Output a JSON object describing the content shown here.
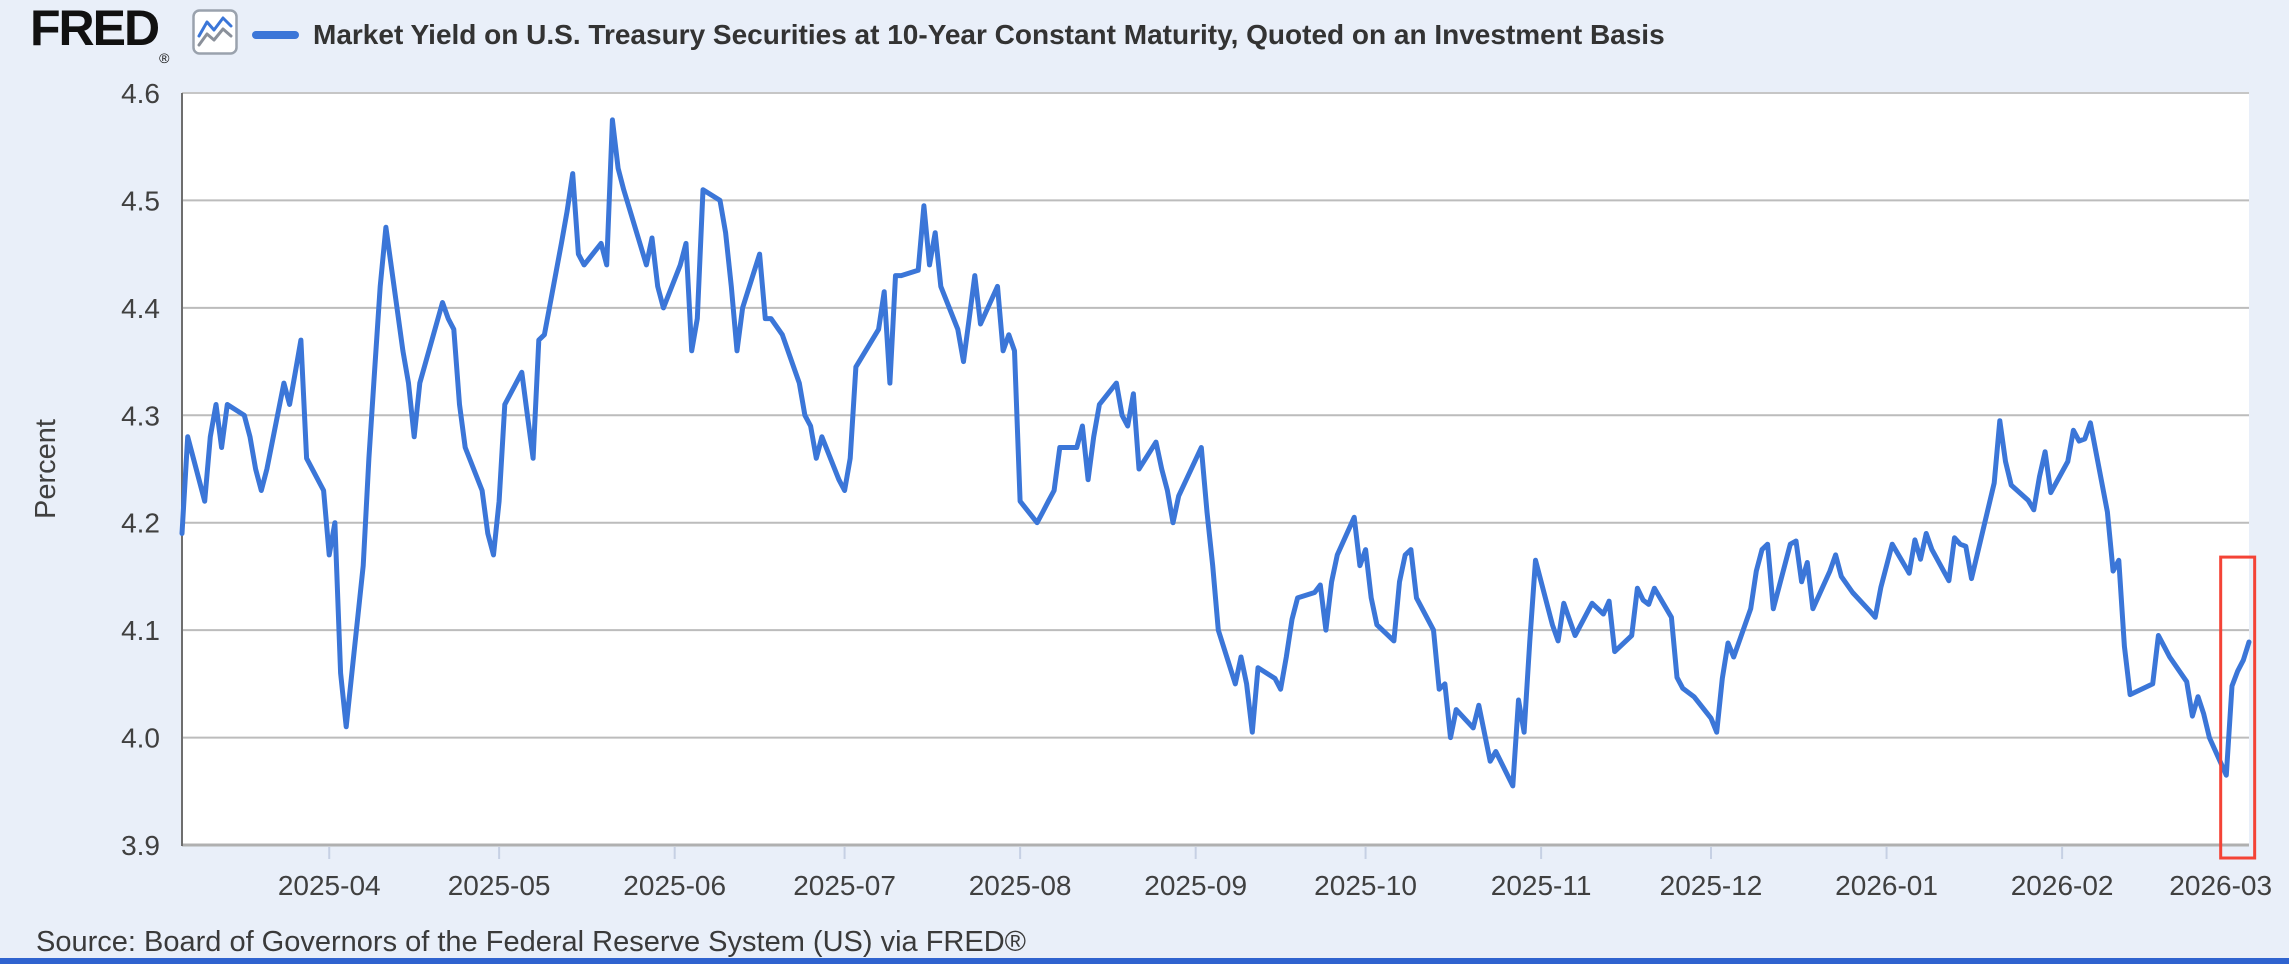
{
  "header": {
    "logo_text": "FRED",
    "logo_registered": "®",
    "title": "Market Yield on U.S. Treasury Securities at 10-Year Constant Maturity, Quoted on an Investment Basis"
  },
  "footer": {
    "source": "Source: Board of Governors of the Federal Reserve System (US) via FRED®"
  },
  "colors": {
    "page_background": "#e9eff9",
    "plot_background": "#ffffff",
    "gridline": "#bcbcbc",
    "axis_line": "#6e6e6e",
    "bottom_axis": "#b0b0b0",
    "tick_mark": "#c6d0e4",
    "label_text": "#404040",
    "series_line": "#3b76d8",
    "highlight_red": "#f44336",
    "footer_bar": "#2f63cf",
    "logo_black": "#111111",
    "icon_gray_line": "#8a909a"
  },
  "chart_data": {
    "type": "line",
    "title": "Market Yield on U.S. Treasury Securities at 10-Year Constant Maturity, Quoted on an Investment Basis",
    "xlabel": "",
    "ylabel": "Percent",
    "ylim": [
      3.9,
      4.6
    ],
    "x_domain": [
      "2025-03-06",
      "2026-03-06"
    ],
    "grid": true,
    "legend_position": "top-left",
    "y_ticks": [
      4.6,
      4.5,
      4.4,
      4.3,
      4.2,
      4.1,
      4.0,
      3.9
    ],
    "x_ticks": [
      "2025-04",
      "2025-05",
      "2025-06",
      "2025-07",
      "2025-08",
      "2025-09",
      "2025-10",
      "2025-11",
      "2025-12",
      "2026-01",
      "2026-02",
      "2026-03"
    ],
    "highlight_box": {
      "from": "2026-03-01",
      "to": "2026-03-07",
      "value_top": 4.168,
      "color": "#f44336"
    },
    "series": [
      {
        "name": "Market Yield on U.S. Treasury Securities at 10-Year Constant Maturity, Quoted on an Investment Basis",
        "color": "#3b76d8",
        "points": [
          [
            "2025-03-06",
            4.19
          ],
          [
            "2025-03-07",
            4.28
          ],
          [
            "2025-03-10",
            4.22
          ],
          [
            "2025-03-11",
            4.28
          ],
          [
            "2025-03-12",
            4.31
          ],
          [
            "2025-03-13",
            4.27
          ],
          [
            "2025-03-14",
            4.31
          ],
          [
            "2025-03-17",
            4.3
          ],
          [
            "2025-03-18",
            4.28
          ],
          [
            "2025-03-19",
            4.25
          ],
          [
            "2025-03-20",
            4.23
          ],
          [
            "2025-03-21",
            4.25
          ],
          [
            "2025-03-24",
            4.33
          ],
          [
            "2025-03-25",
            4.31
          ],
          [
            "2025-03-26",
            4.34
          ],
          [
            "2025-03-27",
            4.37
          ],
          [
            "2025-03-28",
            4.26
          ],
          [
            "2025-03-31",
            4.23
          ],
          [
            "2025-04-01",
            4.17
          ],
          [
            "2025-04-02",
            4.2
          ],
          [
            "2025-04-03",
            4.06
          ],
          [
            "2025-04-04",
            4.01
          ],
          [
            "2025-04-07",
            4.16
          ],
          [
            "2025-04-08",
            4.26
          ],
          [
            "2025-04-09",
            4.34
          ],
          [
            "2025-04-10",
            4.42
          ],
          [
            "2025-04-11",
            4.475
          ],
          [
            "2025-04-14",
            4.36
          ],
          [
            "2025-04-15",
            4.33
          ],
          [
            "2025-04-16",
            4.28
          ],
          [
            "2025-04-17",
            4.33
          ],
          [
            "2025-04-21",
            4.405
          ],
          [
            "2025-04-22",
            4.39
          ],
          [
            "2025-04-23",
            4.38
          ],
          [
            "2025-04-24",
            4.31
          ],
          [
            "2025-04-25",
            4.27
          ],
          [
            "2025-04-28",
            4.23
          ],
          [
            "2025-04-29",
            4.19
          ],
          [
            "2025-04-30",
            4.17
          ],
          [
            "2025-05-01",
            4.22
          ],
          [
            "2025-05-02",
            4.31
          ],
          [
            "2025-05-05",
            4.34
          ],
          [
            "2025-05-06",
            4.3
          ],
          [
            "2025-05-07",
            4.26
          ],
          [
            "2025-05-08",
            4.37
          ],
          [
            "2025-05-09",
            4.375
          ],
          [
            "2025-05-12",
            4.46
          ],
          [
            "2025-05-13",
            4.49
          ],
          [
            "2025-05-14",
            4.525
          ],
          [
            "2025-05-15",
            4.45
          ],
          [
            "2025-05-16",
            4.44
          ],
          [
            "2025-05-19",
            4.46
          ],
          [
            "2025-05-20",
            4.44
          ],
          [
            "2025-05-21",
            4.575
          ],
          [
            "2025-05-22",
            4.53
          ],
          [
            "2025-05-23",
            4.51
          ],
          [
            "2025-05-27",
            4.44
          ],
          [
            "2025-05-28",
            4.465
          ],
          [
            "2025-05-29",
            4.42
          ],
          [
            "2025-05-30",
            4.4
          ],
          [
            "2025-06-02",
            4.44
          ],
          [
            "2025-06-03",
            4.46
          ],
          [
            "2025-06-04",
            4.36
          ],
          [
            "2025-06-05",
            4.39
          ],
          [
            "2025-06-06",
            4.51
          ],
          [
            "2025-06-09",
            4.5
          ],
          [
            "2025-06-10",
            4.47
          ],
          [
            "2025-06-11",
            4.42
          ],
          [
            "2025-06-12",
            4.36
          ],
          [
            "2025-06-13",
            4.4
          ],
          [
            "2025-06-16",
            4.45
          ],
          [
            "2025-06-17",
            4.39
          ],
          [
            "2025-06-18",
            4.39
          ],
          [
            "2025-06-20",
            4.375
          ],
          [
            "2025-06-23",
            4.33
          ],
          [
            "2025-06-24",
            4.3
          ],
          [
            "2025-06-25",
            4.29
          ],
          [
            "2025-06-26",
            4.26
          ],
          [
            "2025-06-27",
            4.28
          ],
          [
            "2025-06-30",
            4.24
          ],
          [
            "2025-07-01",
            4.23
          ],
          [
            "2025-07-02",
            4.26
          ],
          [
            "2025-07-03",
            4.345
          ],
          [
            "2025-07-07",
            4.38
          ],
          [
            "2025-07-08",
            4.415
          ],
          [
            "2025-07-09",
            4.33
          ],
          [
            "2025-07-10",
            4.43
          ],
          [
            "2025-07-11",
            4.43
          ],
          [
            "2025-07-14",
            4.435
          ],
          [
            "2025-07-15",
            4.495
          ],
          [
            "2025-07-16",
            4.44
          ],
          [
            "2025-07-17",
            4.47
          ],
          [
            "2025-07-18",
            4.42
          ],
          [
            "2025-07-21",
            4.38
          ],
          [
            "2025-07-22",
            4.35
          ],
          [
            "2025-07-23",
            4.39
          ],
          [
            "2025-07-24",
            4.43
          ],
          [
            "2025-07-25",
            4.385
          ],
          [
            "2025-07-28",
            4.42
          ],
          [
            "2025-07-29",
            4.36
          ],
          [
            "2025-07-30",
            4.375
          ],
          [
            "2025-07-31",
            4.36
          ],
          [
            "2025-08-01",
            4.22
          ],
          [
            "2025-08-04",
            4.2
          ],
          [
            "2025-08-05",
            4.21
          ],
          [
            "2025-08-06",
            4.22
          ],
          [
            "2025-08-07",
            4.23
          ],
          [
            "2025-08-08",
            4.27
          ],
          [
            "2025-08-11",
            4.27
          ],
          [
            "2025-08-12",
            4.29
          ],
          [
            "2025-08-13",
            4.24
          ],
          [
            "2025-08-14",
            4.28
          ],
          [
            "2025-08-15",
            4.31
          ],
          [
            "2025-08-18",
            4.33
          ],
          [
            "2025-08-19",
            4.3
          ],
          [
            "2025-08-20",
            4.29
          ],
          [
            "2025-08-21",
            4.32
          ],
          [
            "2025-08-22",
            4.25
          ],
          [
            "2025-08-25",
            4.275
          ],
          [
            "2025-08-26",
            4.25
          ],
          [
            "2025-08-27",
            4.23
          ],
          [
            "2025-08-28",
            4.2
          ],
          [
            "2025-08-29",
            4.225
          ],
          [
            "2025-09-02",
            4.27
          ],
          [
            "2025-09-03",
            4.21
          ],
          [
            "2025-09-04",
            4.16
          ],
          [
            "2025-09-05",
            4.1
          ],
          [
            "2025-09-08",
            4.05
          ],
          [
            "2025-09-09",
            4.075
          ],
          [
            "2025-09-10",
            4.05
          ],
          [
            "2025-09-11",
            4.005
          ],
          [
            "2025-09-12",
            4.065
          ],
          [
            "2025-09-15",
            4.055
          ],
          [
            "2025-09-16",
            4.045
          ],
          [
            "2025-09-17",
            4.075
          ],
          [
            "2025-09-18",
            4.11
          ],
          [
            "2025-09-19",
            4.13
          ],
          [
            "2025-09-22",
            4.135
          ],
          [
            "2025-09-23",
            4.142
          ],
          [
            "2025-09-24",
            4.1
          ],
          [
            "2025-09-25",
            4.145
          ],
          [
            "2025-09-26",
            4.17
          ],
          [
            "2025-09-29",
            4.205
          ],
          [
            "2025-09-30",
            4.16
          ],
          [
            "2025-10-01",
            4.175
          ],
          [
            "2025-10-02",
            4.13
          ],
          [
            "2025-10-03",
            4.105
          ],
          [
            "2025-10-06",
            4.09
          ],
          [
            "2025-10-07",
            4.145
          ],
          [
            "2025-10-08",
            4.17
          ],
          [
            "2025-10-09",
            4.175
          ],
          [
            "2025-10-10",
            4.13
          ],
          [
            "2025-10-13",
            4.1
          ],
          [
            "2025-10-14",
            4.045
          ],
          [
            "2025-10-15",
            4.05
          ],
          [
            "2025-10-16",
            4.0
          ],
          [
            "2025-10-17",
            4.026
          ],
          [
            "2025-10-20",
            4.009
          ],
          [
            "2025-10-21",
            4.03
          ],
          [
            "2025-10-22",
            4.004
          ],
          [
            "2025-10-23",
            3.978
          ],
          [
            "2025-10-24",
            3.987
          ],
          [
            "2025-10-27",
            3.955
          ],
          [
            "2025-10-28",
            4.035
          ],
          [
            "2025-10-29",
            4.005
          ],
          [
            "2025-10-30",
            4.09
          ],
          [
            "2025-10-31",
            4.165
          ],
          [
            "2025-11-03",
            4.105
          ],
          [
            "2025-11-04",
            4.09
          ],
          [
            "2025-11-05",
            4.125
          ],
          [
            "2025-11-06",
            4.11
          ],
          [
            "2025-11-07",
            4.095
          ],
          [
            "2025-11-10",
            4.125
          ],
          [
            "2025-11-12",
            4.115
          ],
          [
            "2025-11-13",
            4.127
          ],
          [
            "2025-11-14",
            4.08
          ],
          [
            "2025-11-17",
            4.095
          ],
          [
            "2025-11-18",
            4.139
          ],
          [
            "2025-11-19",
            4.128
          ],
          [
            "2025-11-20",
            4.124
          ],
          [
            "2025-11-21",
            4.139
          ],
          [
            "2025-11-24",
            4.112
          ],
          [
            "2025-11-25",
            4.056
          ],
          [
            "2025-11-26",
            4.046
          ],
          [
            "2025-11-28",
            4.038
          ],
          [
            "2025-12-01",
            4.018
          ],
          [
            "2025-12-02",
            4.005
          ],
          [
            "2025-12-03",
            4.055
          ],
          [
            "2025-12-04",
            4.088
          ],
          [
            "2025-12-05",
            4.075
          ],
          [
            "2025-12-08",
            4.12
          ],
          [
            "2025-12-09",
            4.155
          ],
          [
            "2025-12-10",
            4.175
          ],
          [
            "2025-12-11",
            4.18
          ],
          [
            "2025-12-12",
            4.12
          ],
          [
            "2025-12-15",
            4.18
          ],
          [
            "2025-12-16",
            4.183
          ],
          [
            "2025-12-17",
            4.145
          ],
          [
            "2025-12-18",
            4.163
          ],
          [
            "2025-12-19",
            4.12
          ],
          [
            "2025-12-22",
            4.155
          ],
          [
            "2025-12-23",
            4.17
          ],
          [
            "2025-12-24",
            4.15
          ],
          [
            "2025-12-26",
            4.135
          ],
          [
            "2025-12-29",
            4.118
          ],
          [
            "2025-12-30",
            4.112
          ],
          [
            "2025-12-31",
            4.14
          ],
          [
            "2026-01-02",
            4.18
          ],
          [
            "2026-01-05",
            4.153
          ],
          [
            "2026-01-06",
            4.184
          ],
          [
            "2026-01-07",
            4.166
          ],
          [
            "2026-01-08",
            4.19
          ],
          [
            "2026-01-09",
            4.175
          ],
          [
            "2026-01-12",
            4.146
          ],
          [
            "2026-01-13",
            4.186
          ],
          [
            "2026-01-14",
            4.18
          ],
          [
            "2026-01-15",
            4.178
          ],
          [
            "2026-01-16",
            4.148
          ],
          [
            "2026-01-20",
            4.237
          ],
          [
            "2026-01-21",
            4.295
          ],
          [
            "2026-01-22",
            4.257
          ],
          [
            "2026-01-23",
            4.235
          ],
          [
            "2026-01-26",
            4.221
          ],
          [
            "2026-01-27",
            4.212
          ],
          [
            "2026-01-28",
            4.243
          ],
          [
            "2026-01-29",
            4.266
          ],
          [
            "2026-01-30",
            4.228
          ],
          [
            "2026-02-02",
            4.257
          ],
          [
            "2026-02-03",
            4.286
          ],
          [
            "2026-02-04",
            4.276
          ],
          [
            "2026-02-05",
            4.278
          ],
          [
            "2026-02-06",
            4.293
          ],
          [
            "2026-02-09",
            4.21
          ],
          [
            "2026-02-10",
            4.155
          ],
          [
            "2026-02-11",
            4.165
          ],
          [
            "2026-02-12",
            4.085
          ],
          [
            "2026-02-13",
            4.04
          ],
          [
            "2026-02-17",
            4.05
          ],
          [
            "2026-02-18",
            4.095
          ],
          [
            "2026-02-19",
            4.085
          ],
          [
            "2026-02-20",
            4.075
          ],
          [
            "2026-02-23",
            4.052
          ],
          [
            "2026-02-24",
            4.02
          ],
          [
            "2026-02-25",
            4.038
          ],
          [
            "2026-02-26",
            4.022
          ],
          [
            "2026-02-27",
            4.0
          ],
          [
            "2026-03-02",
            3.965
          ],
          [
            "2026-03-03",
            4.048
          ],
          [
            "2026-03-04",
            4.062
          ],
          [
            "2026-03-05",
            4.072
          ],
          [
            "2026-03-06",
            4.089
          ]
        ]
      }
    ]
  }
}
